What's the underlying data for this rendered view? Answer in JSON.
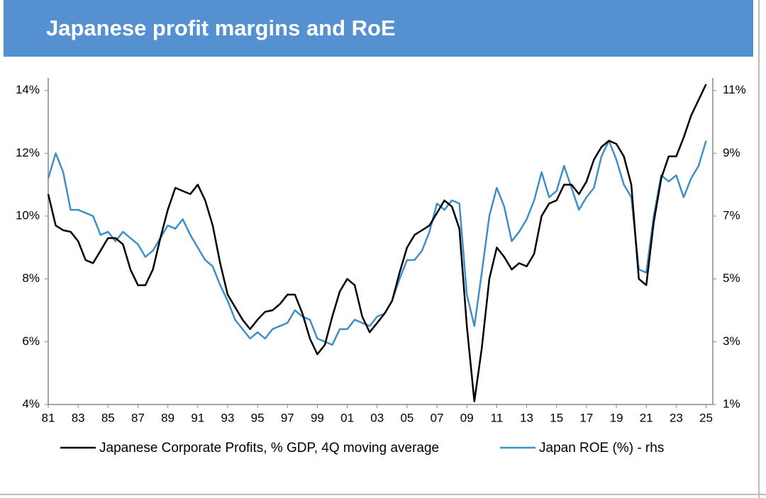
{
  "chart_data": {
    "type": "line",
    "title": "Japanese profit margins and RoE",
    "x": [
      1981,
      1981.5,
      1982,
      1982.5,
      1983,
      1983.5,
      1984,
      1984.5,
      1985,
      1985.5,
      1986,
      1986.5,
      1987,
      1987.5,
      1988,
      1988.5,
      1989,
      1989.5,
      1990,
      1990.5,
      1991,
      1991.5,
      1992,
      1992.5,
      1993,
      1993.5,
      1994,
      1994.5,
      1995,
      1995.5,
      1996,
      1996.5,
      1997,
      1997.5,
      1998,
      1998.5,
      1999,
      1999.5,
      2000,
      2000.5,
      2001,
      2001.5,
      2002,
      2002.5,
      2003,
      2003.5,
      2004,
      2004.5,
      2005,
      2005.5,
      2006,
      2006.5,
      2007,
      2007.5,
      2008,
      2008.5,
      2009,
      2009.5,
      2010,
      2010.5,
      2011,
      2011.5,
      2012,
      2012.5,
      2013,
      2013.5,
      2014,
      2014.5,
      2015,
      2015.5,
      2016,
      2016.5,
      2017,
      2017.5,
      2018,
      2018.5,
      2019,
      2019.5,
      2020,
      2020.5,
      2021,
      2021.5,
      2022,
      2022.5,
      2023,
      2023.5,
      2024,
      2024.5,
      2025
    ],
    "series": [
      {
        "name": "Japanese Corporate Profits, % GDP, 4Q moving average",
        "color": "#000000",
        "values": [
          10.7,
          9.7,
          9.55,
          9.5,
          9.2,
          8.6,
          8.5,
          8.9,
          9.3,
          9.3,
          9.1,
          8.3,
          7.8,
          7.8,
          8.3,
          9.3,
          10.2,
          10.9,
          10.8,
          10.7,
          11.0,
          10.5,
          9.7,
          8.5,
          7.5,
          7.1,
          6.7,
          6.4,
          6.7,
          6.95,
          7.0,
          7.2,
          7.5,
          7.5,
          6.9,
          6.1,
          5.6,
          5.9,
          6.8,
          7.6,
          8.0,
          7.8,
          6.8,
          6.3,
          6.6,
          6.9,
          7.3,
          8.2,
          9.0,
          9.4,
          9.55,
          9.7,
          10.1,
          10.5,
          10.3,
          9.6,
          6.5,
          4.1,
          5.8,
          8.0,
          9.0,
          8.7,
          8.3,
          8.5,
          8.4,
          8.8,
          10.0,
          10.4,
          10.5,
          11.0,
          11.0,
          10.7,
          11.1,
          11.8,
          12.2,
          12.4,
          12.3,
          11.9,
          11.0,
          8.0,
          7.8,
          9.8,
          11.2,
          11.9,
          11.9,
          12.5,
          13.2,
          13.7,
          14.2
        ]
      },
      {
        "name": "Japan ROE (%) - rhs",
        "color": "#3f8fc8",
        "axis": "y2",
        "values": [
          8.2,
          9.0,
          8.4,
          7.2,
          7.2,
          7.1,
          7.0,
          6.4,
          6.5,
          6.2,
          6.5,
          6.3,
          6.1,
          5.7,
          5.9,
          6.3,
          6.7,
          6.6,
          6.9,
          6.4,
          6.0,
          5.6,
          5.4,
          4.8,
          4.3,
          3.7,
          3.4,
          3.1,
          3.3,
          3.1,
          3.4,
          3.5,
          3.6,
          4.0,
          3.8,
          3.7,
          3.1,
          3.0,
          2.9,
          3.4,
          3.4,
          3.7,
          3.6,
          3.5,
          3.8,
          3.9,
          4.3,
          5.0,
          5.6,
          5.6,
          5.9,
          6.5,
          7.4,
          7.2,
          7.5,
          7.4,
          4.5,
          3.5,
          5.2,
          7.0,
          7.9,
          7.3,
          6.2,
          6.5,
          6.9,
          7.5,
          8.4,
          7.6,
          7.8,
          8.6,
          7.9,
          7.2,
          7.6,
          7.9,
          8.9,
          9.4,
          8.8,
          8.0,
          7.6,
          5.3,
          5.2,
          7.0,
          8.3,
          8.1,
          8.3,
          7.6,
          8.2,
          8.6,
          9.4
        ]
      }
    ],
    "xlim": [
      1981,
      2025.45
    ],
    "xticks": [
      {
        "value": 1981,
        "label": "81"
      },
      {
        "value": 1983,
        "label": "83"
      },
      {
        "value": 1985,
        "label": "85"
      },
      {
        "value": 1987,
        "label": "87"
      },
      {
        "value": 1989,
        "label": "89"
      },
      {
        "value": 1991,
        "label": "91"
      },
      {
        "value": 1993,
        "label": "93"
      },
      {
        "value": 1995,
        "label": "95"
      },
      {
        "value": 1997,
        "label": "97"
      },
      {
        "value": 1999,
        "label": "99"
      },
      {
        "value": 2001,
        "label": "01"
      },
      {
        "value": 2003,
        "label": "03"
      },
      {
        "value": 2005,
        "label": "05"
      },
      {
        "value": 2007,
        "label": "07"
      },
      {
        "value": 2009,
        "label": "09"
      },
      {
        "value": 2011,
        "label": "11"
      },
      {
        "value": 2013,
        "label": "13"
      },
      {
        "value": 2015,
        "label": "15"
      },
      {
        "value": 2017,
        "label": "17"
      },
      {
        "value": 2019,
        "label": "19"
      },
      {
        "value": 2021,
        "label": "21"
      },
      {
        "value": 2023,
        "label": "23"
      },
      {
        "value": 2025,
        "label": "25"
      }
    ],
    "ylim": [
      4,
      14.4
    ],
    "yticks": [
      {
        "value": 4,
        "label": "4%"
      },
      {
        "value": 6,
        "label": "6%"
      },
      {
        "value": 8,
        "label": "8%"
      },
      {
        "value": 10,
        "label": "10%"
      },
      {
        "value": 12,
        "label": "12%"
      },
      {
        "value": 14,
        "label": "14%"
      }
    ],
    "y2lim": [
      1,
      11.4
    ],
    "y2ticks": [
      {
        "value": 1,
        "label": "1%"
      },
      {
        "value": 3,
        "label": "3%"
      },
      {
        "value": 5,
        "label": "5%"
      },
      {
        "value": 7,
        "label": "7%"
      },
      {
        "value": 9,
        "label": "9%"
      },
      {
        "value": 11,
        "label": "11%"
      }
    ],
    "grid": false,
    "legend": "bottom"
  }
}
